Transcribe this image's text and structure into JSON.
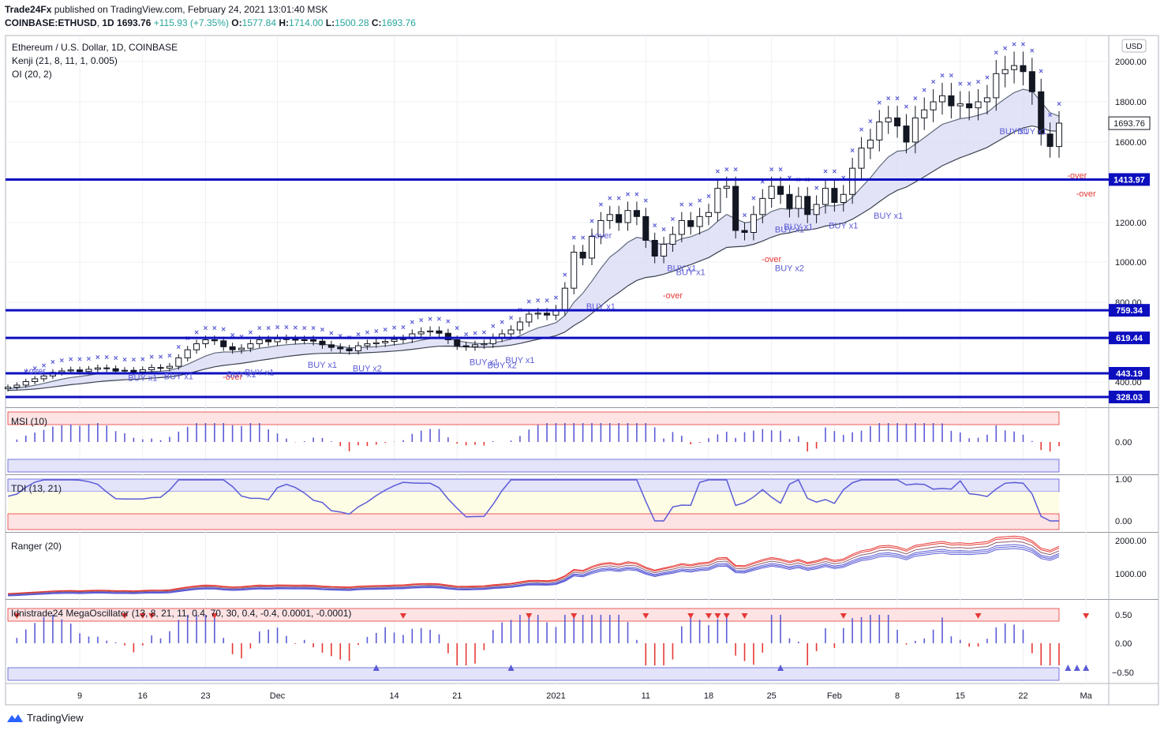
{
  "header": {
    "publisher": "Trade24Fx",
    "published_text": "published on TradingView.com, February 24, 2021 13:01:40 MSK",
    "symbol": "COINBASE:ETHUSD",
    "interval": "1D",
    "last": "1693.76",
    "change": "+115.93 (+7.35%)",
    "o_label": "O:",
    "o": "1577.84",
    "h_label": "H:",
    "h": "1714.00",
    "l_label": "L:",
    "l": "1500.28",
    "c_label": "C:",
    "c": "1693.76"
  },
  "footer": {
    "brand": "TradingView"
  },
  "colors": {
    "level": "#0d0fbf",
    "accent": "#5b5bd6",
    "red": "#e53935",
    "green": "#4caf50",
    "band_fill": "#d7d7f5",
    "price_tag": "#131722"
  },
  "chart_data": {
    "type": "candlestick",
    "title": "Ethereum / U.S. Dollar, 1D, COINBASE",
    "indicators_main": [
      "Kenji (21, 8, 11, 1, 0.005)",
      "OI (20, 2)"
    ],
    "currency_badge": "USD",
    "y_ticks": [
      "2000.00",
      "1800.00",
      "1600.00",
      "1200.00",
      "1000.00",
      "800.00",
      "400.00"
    ],
    "last_price_label": "1693.76",
    "levels": [
      {
        "value": 1413.97,
        "label": "1413.97"
      },
      {
        "value": 759.34,
        "label": "759.34"
      },
      {
        "value": 619.44,
        "label": "619.44"
      },
      {
        "value": 443.19,
        "label": "443.19"
      },
      {
        "value": 328.03,
        "label": "328.03"
      }
    ],
    "x_ticks": [
      {
        "label": "9",
        "day": 8
      },
      {
        "label": "16",
        "day": 15
      },
      {
        "label": "23",
        "day": 22
      },
      {
        "label": "Dec",
        "day": 30
      },
      {
        "label": "14",
        "day": 43
      },
      {
        "label": "21",
        "day": 50
      },
      {
        "label": "2021",
        "day": 61
      },
      {
        "label": "11",
        "day": 71
      },
      {
        "label": "18",
        "day": 78
      },
      {
        "label": "25",
        "day": 85
      },
      {
        "label": "Feb",
        "day": 92
      },
      {
        "label": "8",
        "day": 99
      },
      {
        "label": "15",
        "day": 106
      },
      {
        "label": "22",
        "day": 113
      },
      {
        "label": "Ma",
        "day": 120
      }
    ],
    "closes": [
      375,
      385,
      402,
      416,
      430,
      448,
      455,
      460,
      452,
      463,
      470,
      466,
      454,
      458,
      450,
      461,
      472,
      469,
      478,
      520,
      560,
      590,
      610,
      605,
      575,
      560,
      568,
      590,
      610,
      600,
      615,
      612,
      608,
      610,
      603,
      585,
      572,
      565,
      555,
      580,
      590,
      595,
      602,
      612,
      615,
      640,
      650,
      655,
      643,
      610,
      580,
      575,
      585,
      590,
      620,
      640,
      660,
      700,
      740,
      745,
      735,
      760,
      870,
      1050,
      1020,
      1130,
      1210,
      1240,
      1200,
      1260,
      1230,
      1110,
      1030,
      1090,
      1140,
      1210,
      1180,
      1230,
      1250,
      1370,
      1380,
      1160,
      1150,
      1240,
      1320,
      1380,
      1340,
      1270,
      1330,
      1240,
      1290,
      1370,
      1300,
      1340,
      1470,
      1570,
      1610,
      1700,
      1720,
      1680,
      1600,
      1720,
      1760,
      1800,
      1830,
      1780,
      1790,
      1770,
      1800,
      1820,
      1940,
      1960,
      1980,
      1950,
      1850,
      1640,
      1578,
      1694
    ],
    "annotations": [
      {
        "text": "+over",
        "day": 3,
        "value": 442
      },
      {
        "text": "BUY x1",
        "day": 15,
        "value": 405
      },
      {
        "text": "BUY x1",
        "day": 19,
        "value": 413
      },
      {
        "text": "-over",
        "day": 25,
        "value": 412
      },
      {
        "text": "BUY x1",
        "day": 26,
        "value": 423
      },
      {
        "text": "BUY x1",
        "day": 28,
        "value": 433
      },
      {
        "text": "BUY x1",
        "day": 35,
        "value": 471
      },
      {
        "text": "BUY x2",
        "day": 40,
        "value": 452
      },
      {
        "text": "BUY x1",
        "day": 53,
        "value": 484
      },
      {
        "text": "BUY x2",
        "day": 55,
        "value": 469
      },
      {
        "text": "BUY x1",
        "day": 57,
        "value": 494
      },
      {
        "text": "+over",
        "day": 66,
        "value": 1120
      },
      {
        "text": "BUY x1",
        "day": 66,
        "value": 765
      },
      {
        "text": "BUY x1",
        "day": 75,
        "value": 955
      },
      {
        "text": "BUY x1",
        "day": 76,
        "value": 935
      },
      {
        "text": "-over",
        "day": 74,
        "value": 820
      },
      {
        "text": "-over",
        "day": 85,
        "value": 1000
      },
      {
        "text": "BUY x2",
        "day": 87,
        "value": 955
      },
      {
        "text": "BUY x1",
        "day": 87,
        "value": 1150
      },
      {
        "text": "BUY x1",
        "day": 88,
        "value": 1165
      },
      {
        "text": "BUY x1",
        "day": 93,
        "value": 1170
      },
      {
        "text": "BUY x1",
        "day": 98,
        "value": 1220
      },
      {
        "text": "BUY x1",
        "day": 112,
        "value": 1640
      },
      {
        "text": "BUY x1",
        "day": 114,
        "value": 1640
      },
      {
        "text": "-over",
        "day": 119,
        "value": 1420
      },
      {
        "text": "-over",
        "day": 120,
        "value": 1330
      }
    ],
    "panels": [
      {
        "name": "MSI (10)",
        "ticks": [
          "0.00"
        ]
      },
      {
        "name": "TDI (13, 21)",
        "ticks": [
          "1.00",
          "0.00"
        ]
      },
      {
        "name": "Ranger (20)",
        "ticks": [
          "2000.00",
          "1000.00"
        ]
      },
      {
        "name": "Idnistrade24 MegaOscillator (13, 8, 21, 11, 0.4, 70, 30, 0.4, -0.4, 0.0001, -0.0001)",
        "ticks": [
          "0.50",
          "0.00",
          "−0.50"
        ]
      }
    ]
  }
}
